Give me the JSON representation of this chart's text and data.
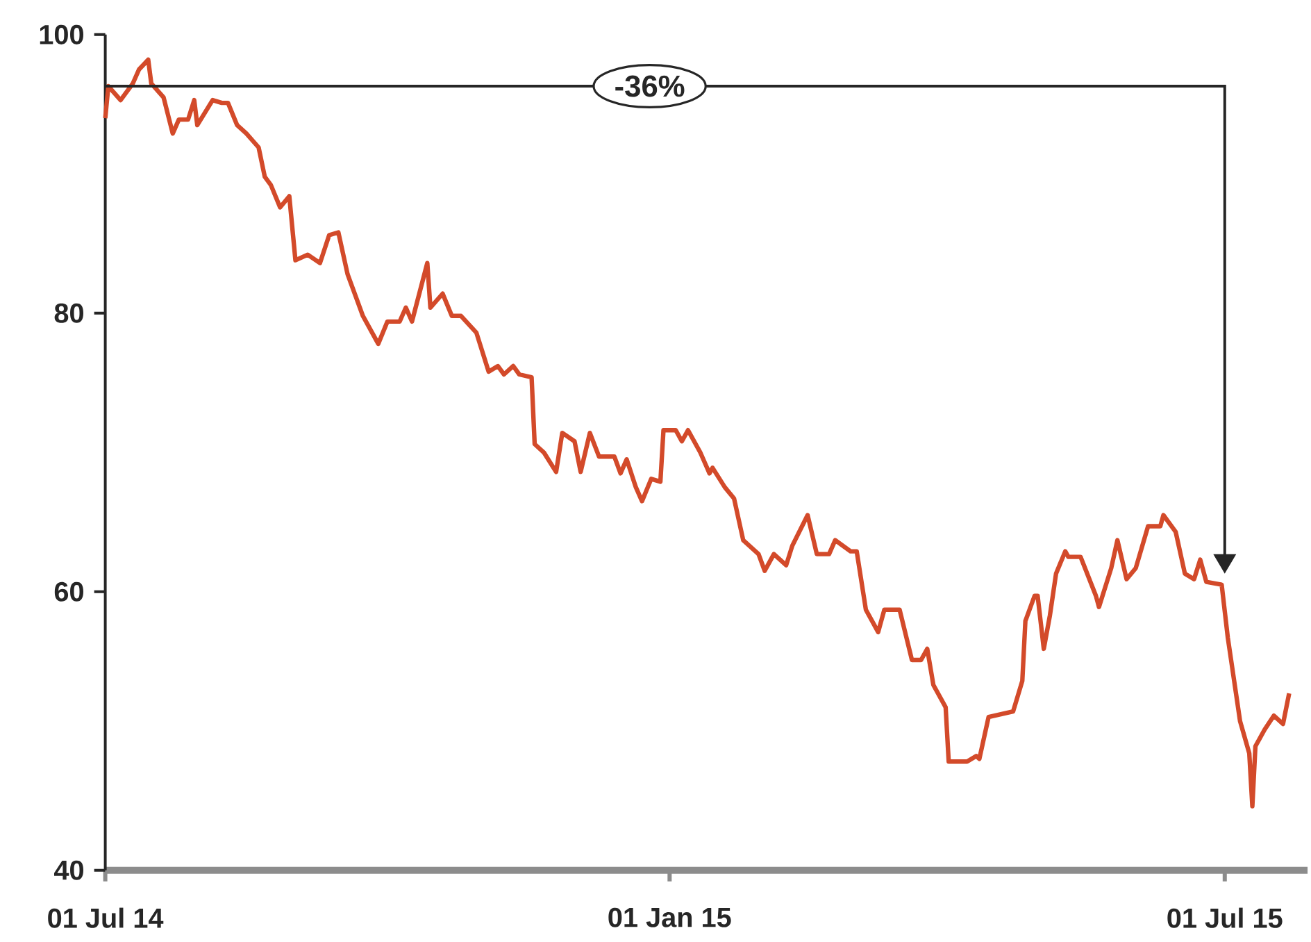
{
  "chart_data": {
    "type": "line",
    "x": [
      "2014-07-01",
      "2014-07-02",
      "2014-07-06",
      "2014-07-08",
      "2014-07-10",
      "2014-07-12",
      "2014-07-15",
      "2014-07-16",
      "2014-07-20",
      "2014-07-23",
      "2014-07-25",
      "2014-07-28",
      "2014-07-30",
      "2014-07-31",
      "2014-08-05",
      "2014-08-08",
      "2014-08-10",
      "2014-08-13",
      "2014-08-16",
      "2014-08-20",
      "2014-08-22",
      "2014-08-24",
      "2014-08-27",
      "2014-08-30",
      "2014-09-01",
      "2014-09-05",
      "2014-09-09",
      "2014-09-12",
      "2014-09-15",
      "2014-09-18",
      "2014-09-23",
      "2014-09-28",
      "2014-10-01",
      "2014-10-05",
      "2014-10-07",
      "2014-10-09",
      "2014-10-14",
      "2014-10-15",
      "2014-10-19",
      "2014-10-22",
      "2014-10-25",
      "2014-10-30",
      "2014-11-03",
      "2014-11-06",
      "2014-11-08",
      "2014-11-11",
      "2014-11-13",
      "2014-11-17",
      "2014-11-18",
      "2014-11-21",
      "2014-11-25",
      "2014-11-27",
      "2014-12-01",
      "2014-12-03",
      "2014-12-06",
      "2014-12-09",
      "2014-12-14",
      "2014-12-16",
      "2014-12-18",
      "2014-12-21",
      "2014-12-23",
      "2014-12-26",
      "2014-12-29",
      "2014-12-30",
      "2015-01-03",
      "2015-01-05",
      "2015-01-07",
      "2015-01-11",
      "2015-01-14",
      "2015-01-15",
      "2015-01-19",
      "2015-01-22",
      "2015-01-25",
      "2015-01-30",
      "2015-02-01",
      "2015-02-04",
      "2015-02-08",
      "2015-02-10",
      "2015-02-15",
      "2015-02-18",
      "2015-02-22",
      "2015-02-24",
      "2015-03-01",
      "2015-03-03",
      "2015-03-06",
      "2015-03-10",
      "2015-03-12",
      "2015-03-17",
      "2015-03-21",
      "2015-03-24",
      "2015-03-26",
      "2015-03-28",
      "2015-04-01",
      "2015-04-02",
      "2015-04-08",
      "2015-04-11",
      "2015-04-12",
      "2015-04-15",
      "2015-04-19",
      "2015-04-23",
      "2015-04-26",
      "2015-04-27",
      "2015-04-30",
      "2015-05-01",
      "2015-05-03",
      "2015-05-05",
      "2015-05-07",
      "2015-05-10",
      "2015-05-11",
      "2015-05-15",
      "2015-05-20",
      "2015-05-21",
      "2015-05-25",
      "2015-05-27",
      "2015-05-30",
      "2015-06-02",
      "2015-06-06",
      "2015-06-10",
      "2015-06-11",
      "2015-06-15",
      "2015-06-18",
      "2015-06-21",
      "2015-06-23",
      "2015-06-25",
      "2015-06-30",
      "2015-07-02",
      "2015-07-06",
      "2015-07-09",
      "2015-07-10",
      "2015-07-11",
      "2015-07-14",
      "2015-07-17",
      "2015-07-20",
      "2015-07-22"
    ],
    "series": [
      {
        "color": "#d34a2a",
        "values": [
          94.0,
          96.3,
          95.3,
          95.9,
          96.5,
          97.5,
          98.2,
          96.5,
          95.5,
          92.9,
          93.9,
          93.9,
          95.3,
          93.5,
          95.3,
          95.1,
          95.1,
          93.5,
          92.9,
          91.9,
          89.8,
          89.2,
          87.6,
          88.4,
          83.8,
          84.2,
          83.6,
          85.6,
          85.8,
          82.8,
          79.8,
          77.8,
          79.4,
          79.4,
          80.4,
          79.4,
          83.6,
          80.4,
          81.4,
          79.8,
          79.8,
          78.6,
          75.8,
          76.2,
          75.6,
          76.2,
          75.6,
          75.4,
          70.6,
          70.0,
          68.6,
          71.4,
          70.8,
          68.6,
          71.4,
          69.7,
          69.7,
          68.5,
          69.5,
          67.5,
          66.5,
          68.1,
          67.9,
          71.6,
          71.6,
          70.8,
          71.6,
          70.0,
          68.5,
          68.9,
          67.5,
          66.7,
          63.7,
          62.7,
          61.5,
          62.7,
          61.9,
          63.3,
          65.5,
          62.7,
          62.7,
          63.7,
          62.9,
          62.9,
          58.7,
          57.1,
          58.7,
          58.7,
          55.1,
          55.1,
          55.9,
          53.3,
          51.7,
          47.8,
          47.8,
          48.2,
          48.0,
          51.0,
          51.2,
          51.4,
          53.6,
          57.9,
          59.7,
          59.7,
          55.9,
          58.3,
          61.3,
          62.9,
          62.5,
          62.5,
          59.7,
          58.9,
          61.7,
          63.7,
          60.9,
          61.7,
          64.7,
          64.7,
          65.5,
          64.3,
          61.3,
          60.9,
          62.3,
          60.7,
          60.5,
          56.7,
          50.7,
          48.4,
          44.6,
          48.9,
          50.1,
          51.1,
          50.5,
          52.7
        ]
      }
    ],
    "xlim": [
      "2014-07-01",
      "2015-07-28"
    ],
    "xticks": [
      {
        "value": "2014-07-01",
        "label": "01 Jul 14"
      },
      {
        "value": "2015-01-01",
        "label": "01 Jan 15"
      },
      {
        "value": "2015-07-01",
        "label": "01 Jul 15"
      }
    ],
    "ylim": [
      40,
      100
    ],
    "yticks": [
      40,
      60,
      80,
      100
    ],
    "annotations": [
      "-36%"
    ]
  }
}
